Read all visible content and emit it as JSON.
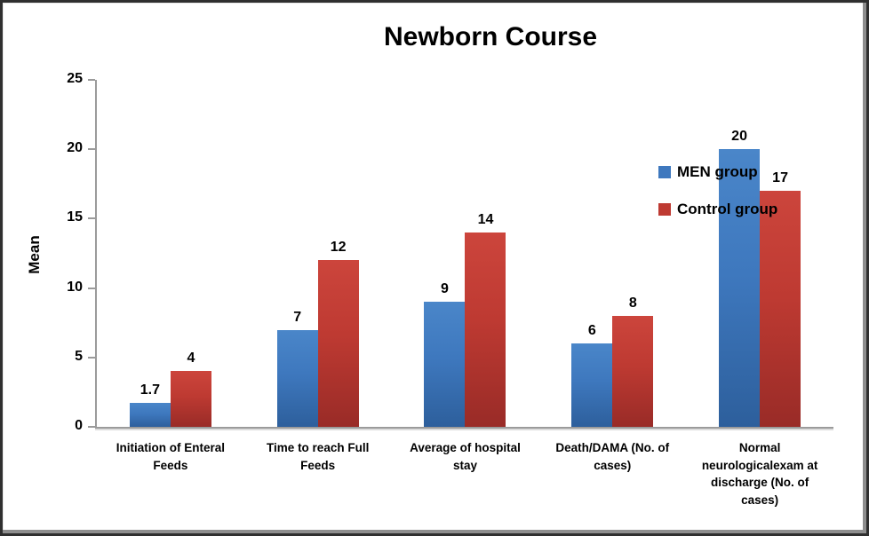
{
  "chart_data": {
    "type": "bar",
    "title": "Newborn Course",
    "ylabel": "Mean",
    "xlabel": "",
    "ylim": [
      0,
      25
    ],
    "yticks": [
      0,
      5,
      10,
      15,
      20,
      25
    ],
    "grid": false,
    "value_labels": true,
    "legend_position": "top-right-inside",
    "categories": [
      "Initiation of Enteral Feeds",
      "Time to reach Full Feeds",
      "Average of hospital stay",
      "Death/DAMA (No. of cases)",
      "Normal neurologicalexam at discharge  (No. of cases)"
    ],
    "series": [
      {
        "name": "MEN group",
        "color": "#3E78BE",
        "color_light": "#4A86C9",
        "color_dark": "#2D5F9C",
        "values": [
          1.7,
          7,
          9,
          6,
          20
        ],
        "value_labels": [
          "1.7",
          "7",
          "9",
          "6",
          "20"
        ]
      },
      {
        "name": "Control group",
        "color": "#BE3A32",
        "color_light": "#CC453C",
        "color_dark": "#992B27",
        "values": [
          4,
          12,
          14,
          8,
          17
        ],
        "value_labels": [
          "4",
          "12",
          "14",
          "8",
          "17"
        ]
      }
    ],
    "axis_color": "#9b9b9b",
    "text_color": "#000000"
  }
}
